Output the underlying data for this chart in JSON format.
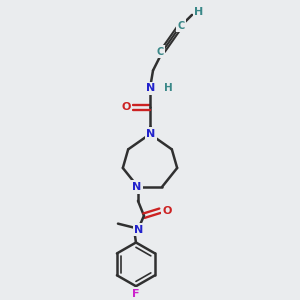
{
  "bg_color": "#eaecee",
  "colors": {
    "C": "#303030",
    "N": "#2222cc",
    "O": "#cc2222",
    "F": "#cc22cc",
    "H": "#3a8888",
    "bond": "#303030"
  },
  "figsize": [
    3.0,
    3.0
  ],
  "dpi": 100
}
